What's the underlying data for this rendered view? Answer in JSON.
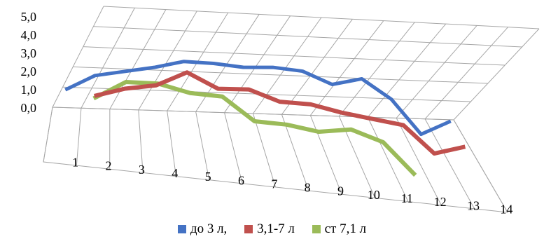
{
  "chart_data": {
    "type": "line",
    "style": "3d-perspective",
    "categories": [
      "1",
      "2",
      "3",
      "4",
      "5",
      "6",
      "7",
      "8",
      "9",
      "10",
      "11",
      "12",
      "13",
      "14"
    ],
    "y_ticks": [
      "0,0",
      "1,0",
      "2,0",
      "3,0",
      "4,0",
      "5,0"
    ],
    "ylim": [
      0,
      5
    ],
    "grid": true,
    "legend_position": "bottom",
    "series": [
      {
        "name": "до 3 л,",
        "color": "#4472c4",
        "values": [
          1.5,
          2.3,
          2.6,
          2.9,
          3.3,
          3.3,
          3.2,
          3.3,
          3.2,
          2.6,
          3.0,
          2.0,
          0.2,
          1.0
        ]
      },
      {
        "name": "3,1-7 л",
        "color": "#c0504d",
        "values": [
          null,
          2.1,
          2.6,
          2.9,
          3.7,
          3.0,
          3.1,
          2.6,
          2.6,
          2.3,
          2.1,
          1.9,
          0.5,
          1.0
        ]
      },
      {
        "name": "ст 7,1 л",
        "color": "#9bbb59",
        "values": [
          null,
          2.8,
          3.8,
          3.9,
          3.6,
          3.6,
          2.5,
          2.5,
          2.3,
          2.6,
          2.1,
          0.5,
          null,
          null
        ]
      }
    ]
  }
}
